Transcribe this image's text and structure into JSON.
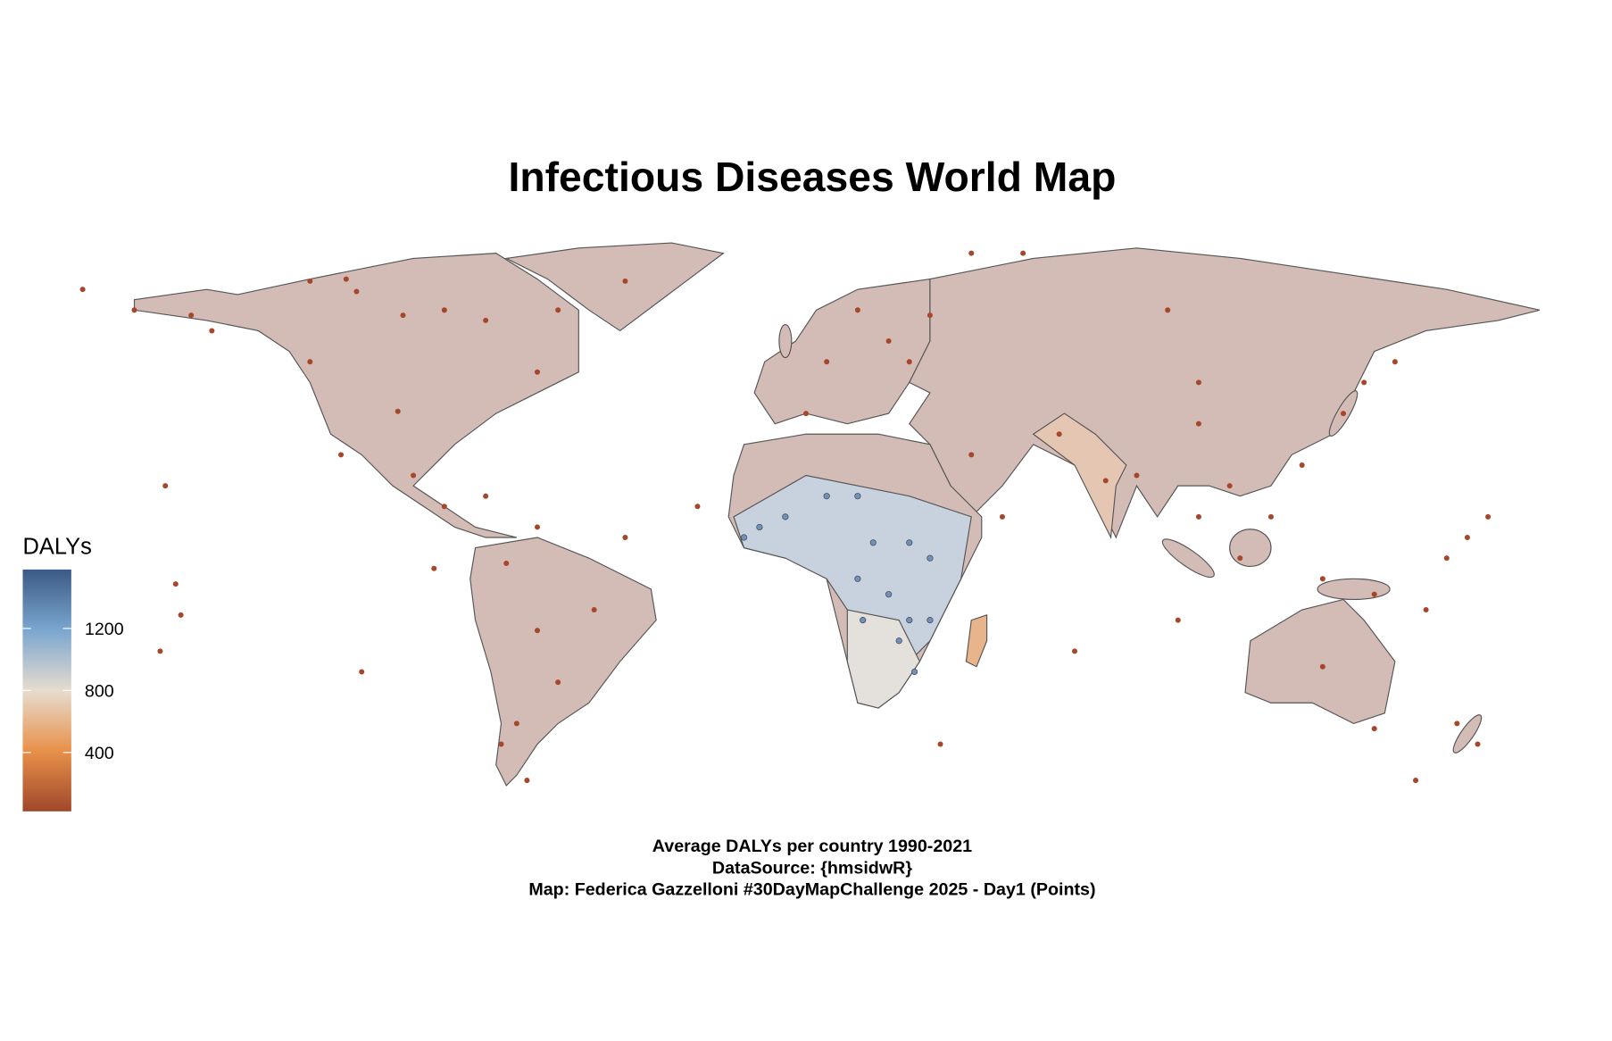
{
  "title": "Infectious Diseases World Map",
  "legend": {
    "title": "DALYs",
    "lim": [
      20,
      1580
    ],
    "ticks": [
      400,
      800,
      1200
    ],
    "colors": [
      "#a0472a",
      "#e8914a",
      "#e6dccf",
      "#7aa6cf",
      "#3b5a85"
    ]
  },
  "caption": [
    "Average DALYs per country 1990-2021",
    "DataSource: {hmsidwR}",
    "Map: Federica Gazzelloni #30DayMapChallenge 2025 - Day1 (Points)"
  ]
}
